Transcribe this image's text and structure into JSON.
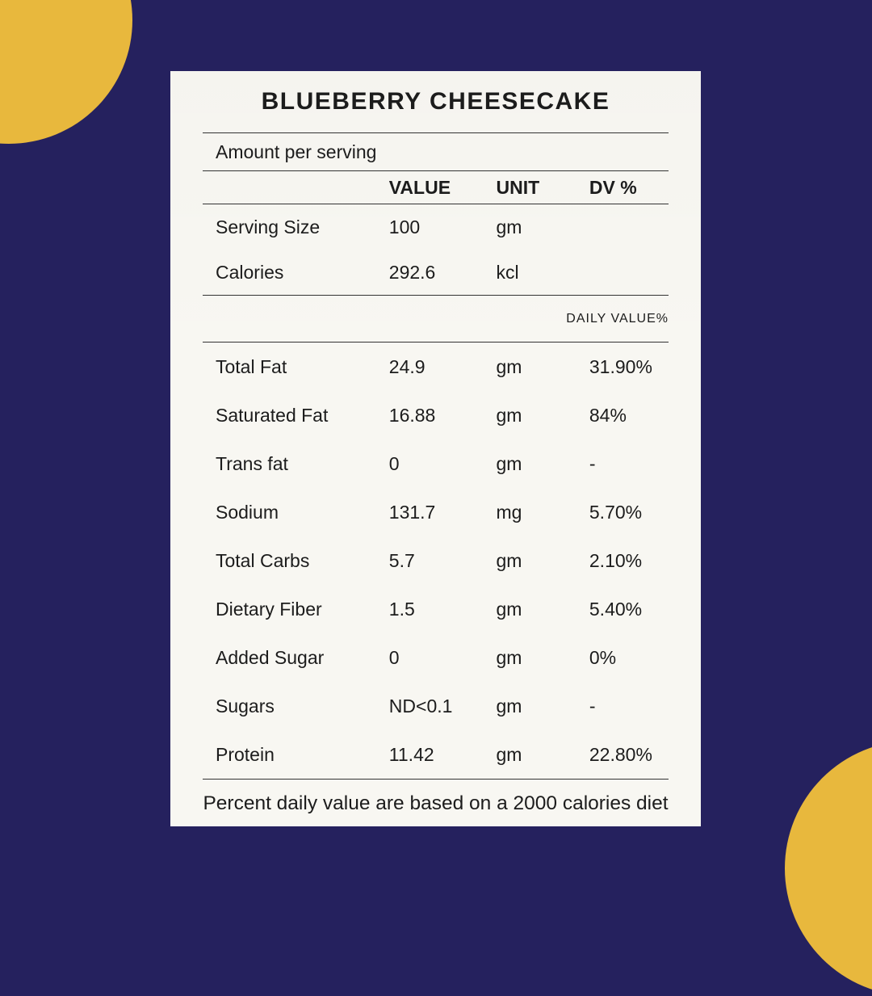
{
  "theme": {
    "background": "#25215E",
    "circle": "#E8B83D",
    "card": "#F8F7F2",
    "text": "#1C1C1C",
    "line": "#333333"
  },
  "card": {
    "title": "BLUEBERRY CHEESECAKE",
    "amount_label": "Amount per serving",
    "columns": {
      "value": "VALUE",
      "unit": "UNIT",
      "dv": "DV %"
    },
    "serving_rows": [
      {
        "label": "Serving Size",
        "value": "100",
        "unit": "gm",
        "dv": ""
      },
      {
        "label": "Calories",
        "value": "292.6",
        "unit": "kcl",
        "dv": ""
      }
    ],
    "daily_value_label": "DAILY VALUE%",
    "nutrient_rows": [
      {
        "label": "Total Fat",
        "value": "24.9",
        "unit": "gm",
        "dv": "31.90%"
      },
      {
        "label": "Saturated Fat",
        "value": "16.88",
        "unit": "gm",
        "dv": "84%"
      },
      {
        "label": "Trans fat",
        "value": "0",
        "unit": "gm",
        "dv": "-"
      },
      {
        "label": "Sodium",
        "value": "131.7",
        "unit": "mg",
        "dv": "5.70%"
      },
      {
        "label": "Total Carbs",
        "value": "5.7",
        "unit": "gm",
        "dv": "2.10%"
      },
      {
        "label": "Dietary Fiber",
        "value": "1.5",
        "unit": "gm",
        "dv": "5.40%"
      },
      {
        "label": "Added Sugar",
        "value": "0",
        "unit": "gm",
        "dv": "0%"
      },
      {
        "label": "Sugars",
        "value": "ND<0.1",
        "unit": "gm",
        "dv": "-"
      },
      {
        "label": "Protein",
        "value": "11.42",
        "unit": "gm",
        "dv": "22.80%"
      }
    ],
    "footnote": "Percent daily value are based on a 2000 calories diet"
  }
}
